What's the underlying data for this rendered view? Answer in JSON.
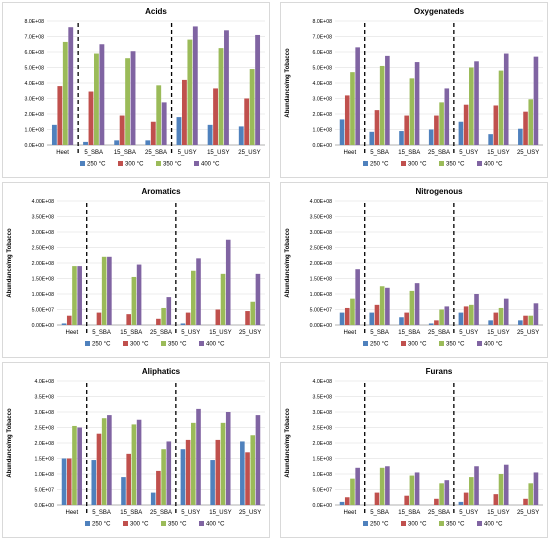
{
  "colors": [
    "#4f81bd",
    "#c0504d",
    "#9bbb59",
    "#8064a2"
  ],
  "chart_data": [
    {
      "type": "bar",
      "title": "Acids",
      "ylabel": "",
      "ylim": [
        0,
        800000000
      ],
      "yticks": [
        "0.0E+00",
        "1.0E+08",
        "2.0E+08",
        "3.0E+08",
        "4.0E+08",
        "5.0E+08",
        "6.0E+08",
        "7.0E+08",
        "8.0E+08"
      ],
      "categories": [
        "Heet",
        "5_SBA",
        "15_SBA",
        "25_SBA",
        "5_USY",
        "15_USY",
        "25_USY"
      ],
      "separators_after": [
        0,
        3
      ],
      "legend": [
        "250 °C",
        "300 °C",
        "350 °C",
        "400 °C"
      ],
      "series": [
        {
          "name": "250 °C",
          "values": [
            130000000,
            20000000,
            30000000,
            30000000,
            180000000,
            130000000,
            120000000
          ]
        },
        {
          "name": "300 °C",
          "values": [
            380000000,
            345000000,
            190000000,
            150000000,
            420000000,
            365000000,
            300000000
          ]
        },
        {
          "name": "350 °C",
          "values": [
            665000000,
            590000000,
            560000000,
            385000000,
            680000000,
            625000000,
            490000000
          ]
        },
        {
          "name": "400 °C",
          "values": [
            760000000,
            650000000,
            605000000,
            275000000,
            765000000,
            740000000,
            710000000
          ]
        }
      ]
    },
    {
      "type": "bar",
      "title": "Oxygenateds",
      "ylabel": "Abundance/mg Tobacco",
      "ylim": [
        0,
        800000000
      ],
      "yticks": [
        "0.0E+00",
        "1.0E+08",
        "2.0E+08",
        "3.0E+08",
        "4.0E+08",
        "5.0E+08",
        "6.0E+08",
        "7.0E+08",
        "8.0E+08"
      ],
      "categories": [
        "Heet",
        "5_SBA",
        "15_SBA",
        "25_SBA",
        "5_USY",
        "15_USY",
        "25_USY"
      ],
      "separators_after": [
        0,
        3
      ],
      "legend": [
        "250 °C",
        "300 °C",
        "350 °C",
        "400 °C"
      ],
      "series": [
        {
          "name": "250 °C",
          "values": [
            165000000,
            85000000,
            90000000,
            100000000,
            150000000,
            70000000,
            105000000
          ]
        },
        {
          "name": "300 °C",
          "values": [
            320000000,
            225000000,
            190000000,
            190000000,
            260000000,
            255000000,
            215000000
          ]
        },
        {
          "name": "350 °C",
          "values": [
            470000000,
            510000000,
            430000000,
            275000000,
            500000000,
            480000000,
            295000000
          ]
        },
        {
          "name": "400 °C",
          "values": [
            630000000,
            575000000,
            535000000,
            365000000,
            540000000,
            590000000,
            570000000
          ]
        }
      ]
    },
    {
      "type": "bar",
      "title": "Aromatics",
      "ylabel": "Abundance/mg Tobacco",
      "ylim": [
        0,
        400000000
      ],
      "yticks": [
        "0.00E+00",
        "5.00E+07",
        "1.00E+08",
        "1.50E+08",
        "2.00E+08",
        "2.50E+08",
        "3.00E+08",
        "3.50E+08",
        "4.00E+08"
      ],
      "categories": [
        "Heet",
        "5_SBA",
        "15_SBA",
        "25_SBA",
        "5_USY",
        "15_USY",
        "25_USY"
      ],
      "separators_after": [
        0,
        3
      ],
      "legend": [
        "250 °C",
        "300 °C",
        "350 °C",
        "400 °C"
      ],
      "series": [
        {
          "name": "250 °C",
          "values": [
            5000000,
            0,
            0,
            0,
            5000000,
            0,
            0
          ]
        },
        {
          "name": "300 °C",
          "values": [
            30000000,
            40000000,
            35000000,
            20000000,
            40000000,
            50000000,
            45000000
          ]
        },
        {
          "name": "350 °C",
          "values": [
            190000000,
            220000000,
            155000000,
            55000000,
            175000000,
            165000000,
            75000000
          ]
        },
        {
          "name": "400 °C",
          "values": [
            190000000,
            220000000,
            195000000,
            90000000,
            215000000,
            275000000,
            165000000
          ]
        }
      ]
    },
    {
      "type": "bar",
      "title": "Nitrogenous",
      "ylabel": "Abundance/mg Tobacco",
      "ylim": [
        0,
        400000000
      ],
      "yticks": [
        "0.00E+00",
        "5.00E+07",
        "1.00E+08",
        "1.50E+08",
        "2.00E+08",
        "2.50E+08",
        "3.00E+08",
        "3.50E+08",
        "4.00E+08"
      ],
      "categories": [
        "Heet",
        "5_SBA",
        "15_SBA",
        "25_SBA",
        "5_USY",
        "15_USY",
        "25_USY"
      ],
      "separators_after": [
        0,
        3
      ],
      "legend": [
        "250 °C",
        "300 °C",
        "350 °C",
        "400 °C"
      ],
      "series": [
        {
          "name": "250 °C",
          "values": [
            40000000,
            40000000,
            25000000,
            5000000,
            40000000,
            15000000,
            15000000
          ]
        },
        {
          "name": "300 °C",
          "values": [
            55000000,
            65000000,
            40000000,
            15000000,
            60000000,
            40000000,
            30000000
          ]
        },
        {
          "name": "350 °C",
          "values": [
            85000000,
            125000000,
            110000000,
            50000000,
            65000000,
            55000000,
            30000000
          ]
        },
        {
          "name": "400 °C",
          "values": [
            180000000,
            120000000,
            135000000,
            60000000,
            100000000,
            85000000,
            70000000
          ]
        }
      ]
    },
    {
      "type": "bar",
      "title": "Aliphatics",
      "ylabel": "Abundance/mg Tobacco",
      "ylim": [
        0,
        400000000
      ],
      "yticks": [
        "0.0E+00",
        "5.0E+07",
        "1.0E+08",
        "1.5E+08",
        "2.0E+08",
        "2.5E+08",
        "3.0E+08",
        "3.5E+08",
        "4.0E+08"
      ],
      "categories": [
        "Heet",
        "5_SBA",
        "15_SBA",
        "25_SBA",
        "5_USY",
        "15_USY",
        "25_USY"
      ],
      "separators_after": [
        0,
        3
      ],
      "legend": [
        "250 °C",
        "300 °C",
        "350 °C",
        "400 °C"
      ],
      "series": [
        {
          "name": "250 °C",
          "values": [
            150000000,
            145000000,
            90000000,
            40000000,
            180000000,
            145000000,
            205000000
          ]
        },
        {
          "name": "300 °C",
          "values": [
            150000000,
            230000000,
            165000000,
            110000000,
            210000000,
            210000000,
            170000000
          ]
        },
        {
          "name": "350 °C",
          "values": [
            255000000,
            280000000,
            260000000,
            180000000,
            265000000,
            265000000,
            225000000
          ]
        },
        {
          "name": "400 °C",
          "values": [
            250000000,
            290000000,
            275000000,
            205000000,
            310000000,
            300000000,
            290000000
          ]
        }
      ]
    },
    {
      "type": "bar",
      "title": "Furans",
      "ylabel": "Abundance/mg Tobacco",
      "ylim": [
        0,
        400000000
      ],
      "yticks": [
        "0.0E+00",
        "5.0E+07",
        "1.0E+08",
        "1.5E+08",
        "2.0E+08",
        "2.5E+08",
        "3.0E+08",
        "3.5E+08",
        "4.0E+08"
      ],
      "categories": [
        "Heet",
        "5_SBA",
        "15_SBA",
        "25_SBA",
        "5_USY",
        "15_USY",
        "25_USY"
      ],
      "separators_after": [
        0,
        3
      ],
      "legend": [
        "250 °C",
        "300 °C",
        "350 °C",
        "400 °C"
      ],
      "series": [
        {
          "name": "250 °C",
          "values": [
            10000000,
            0,
            0,
            0,
            10000000,
            0,
            0
          ]
        },
        {
          "name": "300 °C",
          "values": [
            25000000,
            40000000,
            30000000,
            20000000,
            40000000,
            35000000,
            20000000
          ]
        },
        {
          "name": "350 °C",
          "values": [
            85000000,
            120000000,
            95000000,
            70000000,
            90000000,
            100000000,
            70000000
          ]
        },
        {
          "name": "400 °C",
          "values": [
            120000000,
            125000000,
            105000000,
            80000000,
            125000000,
            130000000,
            105000000
          ]
        }
      ]
    }
  ]
}
